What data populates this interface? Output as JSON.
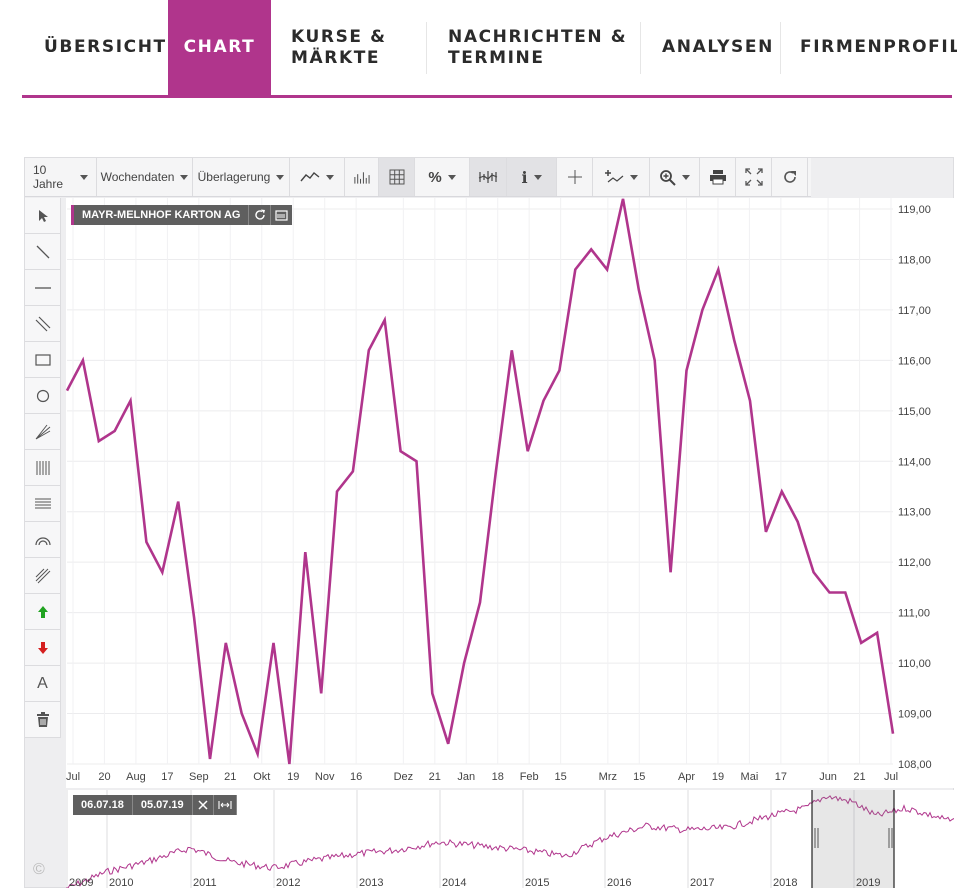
{
  "nav": {
    "tabs": [
      {
        "label": "ÜBERSICHT",
        "active": false
      },
      {
        "label": "CHART",
        "active": true
      },
      {
        "label": "KURSE &\nMÄRKTE",
        "active": false
      },
      {
        "label": "NACHRICHTEN &\nTERMINE",
        "active": false
      },
      {
        "label": "ANALYSEN",
        "active": false
      },
      {
        "label": "FIRMENPROFIL",
        "active": false
      }
    ],
    "accent_color": "#b0358c"
  },
  "toolbar": {
    "period_label": "10 Jahre",
    "data_label": "Wochendaten",
    "overlay_label": "Überlagerung",
    "percent_label": "%",
    "icons": [
      "line-chart-icon",
      "volume-icon",
      "grid-icon",
      "percent-icon",
      "candles-icon",
      "info-icon",
      "crosshair-icon",
      "indicator-icon",
      "zoom-icon",
      "print-icon",
      "fullscreen-icon",
      "refresh-icon"
    ]
  },
  "sidebar": {
    "tools": [
      "cursor-icon",
      "trendline-icon",
      "horizontal-line-icon",
      "channel-icon",
      "rectangle-icon",
      "circle-icon",
      "fan-icon",
      "fibonacci-time-icon",
      "fibonacci-retracement-icon",
      "arc-icon",
      "parallel-lines-icon",
      "arrow-up-icon",
      "arrow-down-icon",
      "text-icon",
      "trash-icon"
    ],
    "text_tool_label": "A"
  },
  "chart": {
    "instrument": "MAYR-MELNHOF KARTON AG",
    "line_color": "#b0358c"
  },
  "navigator": {
    "from": "06.07.18",
    "to": "05.07.19",
    "years": [
      "2009",
      "2010",
      "2011",
      "2012",
      "2013",
      "2014",
      "2015",
      "2016",
      "2017",
      "2018",
      "2019"
    ]
  },
  "copyright_symbol": "©",
  "chart_data": {
    "type": "line",
    "title": "MAYR-MELNHOF KARTON AG",
    "xlabel": "",
    "ylabel": "",
    "ylim": [
      108,
      119.2
    ],
    "ytick_labels": [
      "108,00",
      "109,00",
      "110,00",
      "111,00",
      "112,00",
      "113,00",
      "114,00",
      "115,00",
      "116,00",
      "117,00",
      "118,00",
      "119,00"
    ],
    "xtick_labels": [
      "Jul",
      "20",
      "Aug",
      "17",
      "Sep",
      "21",
      "Okt",
      "19",
      "Nov",
      "16",
      "Dez",
      "21",
      "Jan",
      "18",
      "Feb",
      "15",
      "Mrz",
      "15",
      "Apr",
      "19",
      "Mai",
      "17",
      "Jun",
      "21",
      "Jul"
    ],
    "x": [
      "06.07.18",
      "13.07.18",
      "20.07.18",
      "27.07.18",
      "03.08.18",
      "10.08.18",
      "17.08.18",
      "24.08.18",
      "31.08.18",
      "07.09.18",
      "14.09.18",
      "21.09.18",
      "28.09.18",
      "05.10.18",
      "12.10.18",
      "19.10.18",
      "26.10.18",
      "02.11.18",
      "09.11.18",
      "16.11.18",
      "23.11.18",
      "30.11.18",
      "07.12.18",
      "14.12.18",
      "21.12.18",
      "28.12.18",
      "04.01.19",
      "11.01.19",
      "18.01.19",
      "25.01.19",
      "01.02.19",
      "08.02.19",
      "15.02.19",
      "22.02.19",
      "01.03.19",
      "08.03.19",
      "15.03.19",
      "22.03.19",
      "29.03.19",
      "05.04.19",
      "12.04.19",
      "19.04.19",
      "26.04.19",
      "03.05.19",
      "10.05.19",
      "17.05.19",
      "24.05.19",
      "31.05.19",
      "07.06.19",
      "14.06.19",
      "21.06.19",
      "28.06.19",
      "05.07.19"
    ],
    "values": [
      115.4,
      116.0,
      114.4,
      114.6,
      115.2,
      112.4,
      111.8,
      113.2,
      110.9,
      108.1,
      110.4,
      109.0,
      108.2,
      110.4,
      108.0,
      112.2,
      109.4,
      113.4,
      113.8,
      116.2,
      116.8,
      114.2,
      114.0,
      109.4,
      108.4,
      110.0,
      111.2,
      113.8,
      116.2,
      114.2,
      115.2,
      115.8,
      117.8,
      118.2,
      117.8,
      119.2,
      117.4,
      116.0,
      111.8,
      115.8,
      117.0,
      117.8,
      116.4,
      115.2,
      112.6,
      113.4,
      112.8,
      111.8,
      111.4,
      111.4,
      110.4,
      110.6,
      108.6
    ],
    "grid": true,
    "legend": "none"
  }
}
